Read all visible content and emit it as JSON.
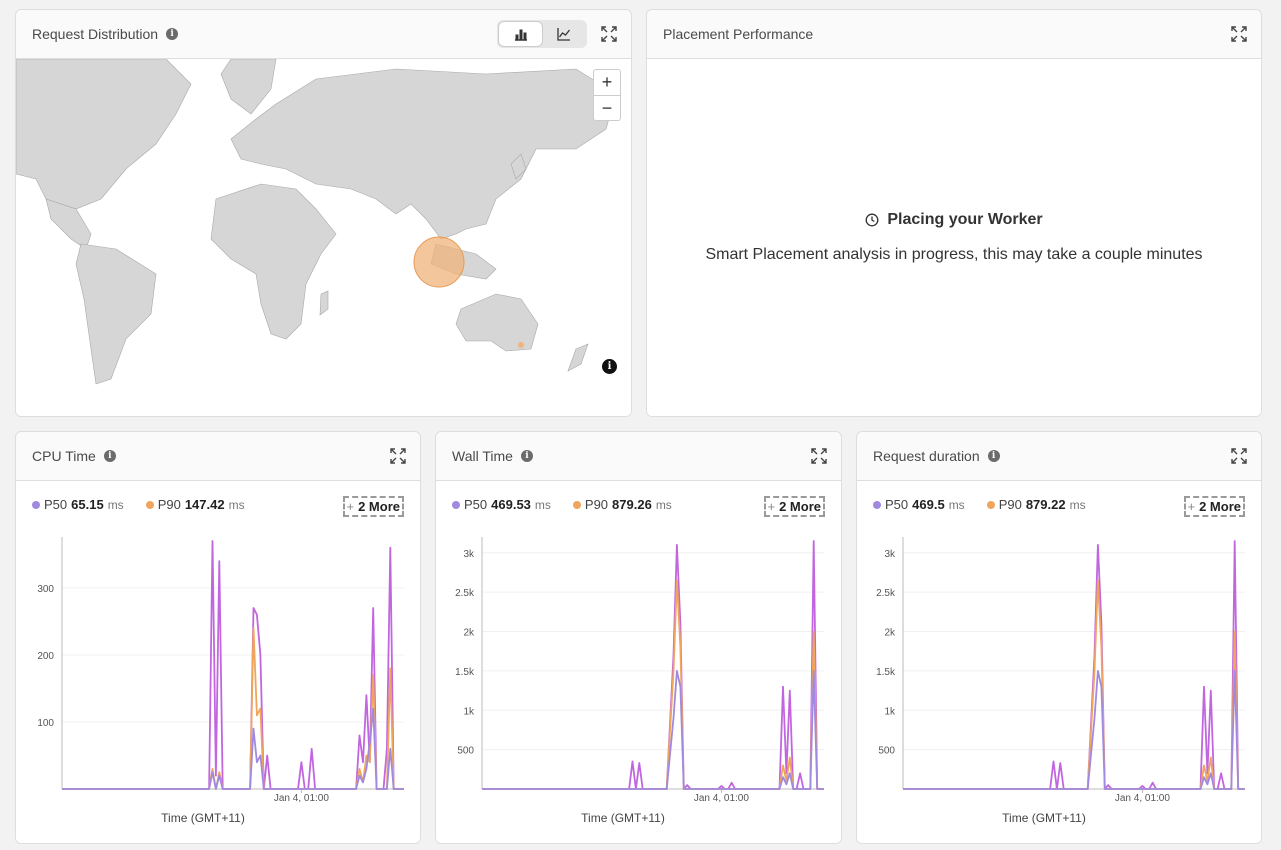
{
  "request_distribution": {
    "title": "Request Distribution",
    "info_icon": "i",
    "toggle": {
      "bar_icon": "bar-chart-icon",
      "line_icon": "line-chart-icon",
      "active": "bar"
    },
    "zoom_in": "+",
    "zoom_out": "−",
    "map_info": "i"
  },
  "placement": {
    "title": "Placement Performance",
    "heading": "Placing your Worker",
    "message": "Smart Placement analysis in progress, this may take a couple minutes"
  },
  "colors": {
    "p50": "#9f8ae0",
    "p90": "#f0a55c",
    "peak": "#c266e0",
    "map_land": "#d6d6d6",
    "bubble": "#f0b37a"
  },
  "more_label": "2 More",
  "more_plus": "+",
  "panels": [
    {
      "title": "CPU Time",
      "p50_label": "P50",
      "p50_value": "65.15",
      "p50_unit": "ms",
      "p90_label": "P90",
      "p90_value": "147.42",
      "p90_unit": "ms",
      "x_label": "Time (GMT+11)",
      "x_tick": "Jan 4, 01:00",
      "y_ticks": [
        "100",
        "200",
        "300"
      ]
    },
    {
      "title": "Wall Time",
      "p50_label": "P50",
      "p50_value": "469.53",
      "p50_unit": "ms",
      "p90_label": "P90",
      "p90_value": "879.26",
      "p90_unit": "ms",
      "x_label": "Time (GMT+11)",
      "x_tick": "Jan 4, 01:00",
      "y_ticks": [
        "500",
        "1k",
        "1.5k",
        "2k",
        "2.5k",
        "3k"
      ]
    },
    {
      "title": "Request duration",
      "p50_label": "P50",
      "p50_value": "469.5",
      "p50_unit": "ms",
      "p90_label": "P90",
      "p90_value": "879.22",
      "p90_unit": "ms",
      "x_label": "Time (GMT+11)",
      "x_tick": "Jan 4, 01:00",
      "y_ticks": [
        "500",
        "1k",
        "1.5k",
        "2k",
        "2.5k",
        "3k"
      ]
    }
  ],
  "chart_data": [
    {
      "type": "line",
      "ylim": [
        0,
        370
      ],
      "y_ticks": [
        100,
        200,
        300
      ],
      "x_tick": "Jan 4, 01:00",
      "xlabel": "Time (GMT+11)",
      "series": [
        {
          "name": "peak",
          "points": [
            [
              0,
              0
            ],
            [
              43,
              0
            ],
            [
              44,
              370
            ],
            [
              45,
              20
            ],
            [
              46,
              340
            ],
            [
              47,
              0
            ],
            [
              55,
              0
            ],
            [
              56,
              270
            ],
            [
              57,
              260
            ],
            [
              58,
              200
            ],
            [
              59,
              0
            ],
            [
              60,
              50
            ],
            [
              61,
              0
            ],
            [
              69,
              0
            ],
            [
              70,
              40
            ],
            [
              71,
              0
            ],
            [
              72,
              0
            ],
            [
              73,
              60
            ],
            [
              74,
              0
            ],
            [
              86,
              0
            ],
            [
              87,
              80
            ],
            [
              88,
              40
            ],
            [
              89,
              140
            ],
            [
              90,
              40
            ],
            [
              91,
              270
            ],
            [
              92,
              0
            ],
            [
              94,
              0
            ],
            [
              95,
              60
            ],
            [
              96,
              360
            ],
            [
              97,
              0
            ],
            [
              100,
              0
            ]
          ]
        },
        {
          "name": "P90",
          "points": [
            [
              0,
              0
            ],
            [
              43,
              0
            ],
            [
              44,
              30
            ],
            [
              45,
              0
            ],
            [
              46,
              25
            ],
            [
              47,
              0
            ],
            [
              55,
              0
            ],
            [
              56,
              240
            ],
            [
              57,
              110
            ],
            [
              58,
              120
            ],
            [
              59,
              0
            ],
            [
              86,
              0
            ],
            [
              87,
              30
            ],
            [
              88,
              10
            ],
            [
              89,
              50
            ],
            [
              90,
              40
            ],
            [
              91,
              170
            ],
            [
              92,
              0
            ],
            [
              95,
              0
            ],
            [
              96,
              180
            ],
            [
              97,
              0
            ],
            [
              100,
              0
            ]
          ]
        },
        {
          "name": "P50",
          "points": [
            [
              0,
              0
            ],
            [
              43,
              0
            ],
            [
              44,
              25
            ],
            [
              45,
              0
            ],
            [
              46,
              20
            ],
            [
              47,
              0
            ],
            [
              55,
              0
            ],
            [
              56,
              90
            ],
            [
              57,
              40
            ],
            [
              58,
              50
            ],
            [
              59,
              0
            ],
            [
              86,
              0
            ],
            [
              87,
              20
            ],
            [
              88,
              10
            ],
            [
              89,
              30
            ],
            [
              90,
              70
            ],
            [
              91,
              120
            ],
            [
              92,
              0
            ],
            [
              95,
              0
            ],
            [
              96,
              60
            ],
            [
              97,
              0
            ],
            [
              100,
              0
            ]
          ]
        }
      ]
    },
    {
      "type": "line",
      "ylim": [
        0,
        3150
      ],
      "y_ticks": [
        500,
        1000,
        1500,
        2000,
        2500,
        3000
      ],
      "x_tick": "Jan 4, 01:00",
      "xlabel": "Time (GMT+11)",
      "series": [
        {
          "name": "peak",
          "points": [
            [
              0,
              0
            ],
            [
              43,
              0
            ],
            [
              44,
              350
            ],
            [
              45,
              0
            ],
            [
              46,
              330
            ],
            [
              47,
              0
            ],
            [
              54,
              0
            ],
            [
              56,
              1700
            ],
            [
              57,
              3100
            ],
            [
              58,
              2100
            ],
            [
              59,
              0
            ],
            [
              60,
              50
            ],
            [
              61,
              0
            ],
            [
              69,
              0
            ],
            [
              70,
              40
            ],
            [
              71,
              0
            ],
            [
              72,
              0
            ],
            [
              73,
              80
            ],
            [
              74,
              0
            ],
            [
              87,
              0
            ],
            [
              88,
              1300
            ],
            [
              89,
              200
            ],
            [
              90,
              1250
            ],
            [
              91,
              0
            ],
            [
              92,
              0
            ],
            [
              93,
              200
            ],
            [
              94,
              0
            ],
            [
              96,
              0
            ],
            [
              97,
              3150
            ],
            [
              98,
              0
            ],
            [
              100,
              0
            ]
          ]
        },
        {
          "name": "P90",
          "points": [
            [
              0,
              0
            ],
            [
              54,
              0
            ],
            [
              56,
              1500
            ],
            [
              57,
              2650
            ],
            [
              58,
              1800
            ],
            [
              59,
              0
            ],
            [
              87,
              0
            ],
            [
              88,
              300
            ],
            [
              89,
              100
            ],
            [
              90,
              400
            ],
            [
              91,
              0
            ],
            [
              96,
              0
            ],
            [
              97,
              2000
            ],
            [
              98,
              0
            ],
            [
              100,
              0
            ]
          ]
        },
        {
          "name": "P50",
          "points": [
            [
              0,
              0
            ],
            [
              54,
              0
            ],
            [
              56,
              900
            ],
            [
              57,
              1500
            ],
            [
              58,
              1300
            ],
            [
              59,
              0
            ],
            [
              87,
              0
            ],
            [
              88,
              150
            ],
            [
              89,
              60
            ],
            [
              90,
              200
            ],
            [
              91,
              0
            ],
            [
              96,
              0
            ],
            [
              97,
              1500
            ],
            [
              98,
              0
            ],
            [
              100,
              0
            ]
          ]
        }
      ]
    },
    {
      "type": "line",
      "ylim": [
        0,
        3150
      ],
      "y_ticks": [
        500,
        1000,
        1500,
        2000,
        2500,
        3000
      ],
      "x_tick": "Jan 4, 01:00",
      "xlabel": "Time (GMT+11)",
      "series": [
        {
          "name": "peak",
          "points": [
            [
              0,
              0
            ],
            [
              43,
              0
            ],
            [
              44,
              350
            ],
            [
              45,
              0
            ],
            [
              46,
              330
            ],
            [
              47,
              0
            ],
            [
              54,
              0
            ],
            [
              56,
              1700
            ],
            [
              57,
              3100
            ],
            [
              58,
              2100
            ],
            [
              59,
              0
            ],
            [
              60,
              50
            ],
            [
              61,
              0
            ],
            [
              69,
              0
            ],
            [
              70,
              40
            ],
            [
              71,
              0
            ],
            [
              72,
              0
            ],
            [
              73,
              80
            ],
            [
              74,
              0
            ],
            [
              87,
              0
            ],
            [
              88,
              1300
            ],
            [
              89,
              200
            ],
            [
              90,
              1250
            ],
            [
              91,
              0
            ],
            [
              92,
              0
            ],
            [
              93,
              200
            ],
            [
              94,
              0
            ],
            [
              96,
              0
            ],
            [
              97,
              3150
            ],
            [
              98,
              0
            ],
            [
              100,
              0
            ]
          ]
        },
        {
          "name": "P90",
          "points": [
            [
              0,
              0
            ],
            [
              54,
              0
            ],
            [
              56,
              1500
            ],
            [
              57,
              2650
            ],
            [
              58,
              1800
            ],
            [
              59,
              0
            ],
            [
              87,
              0
            ],
            [
              88,
              300
            ],
            [
              89,
              100
            ],
            [
              90,
              400
            ],
            [
              91,
              0
            ],
            [
              96,
              0
            ],
            [
              97,
              2000
            ],
            [
              98,
              0
            ],
            [
              100,
              0
            ]
          ]
        },
        {
          "name": "P50",
          "points": [
            [
              0,
              0
            ],
            [
              54,
              0
            ],
            [
              56,
              900
            ],
            [
              57,
              1500
            ],
            [
              58,
              1300
            ],
            [
              59,
              0
            ],
            [
              87,
              0
            ],
            [
              88,
              150
            ],
            [
              89,
              60
            ],
            [
              90,
              200
            ],
            [
              91,
              0
            ],
            [
              96,
              0
            ],
            [
              97,
              1500
            ],
            [
              98,
              0
            ],
            [
              100,
              0
            ]
          ]
        }
      ]
    }
  ]
}
